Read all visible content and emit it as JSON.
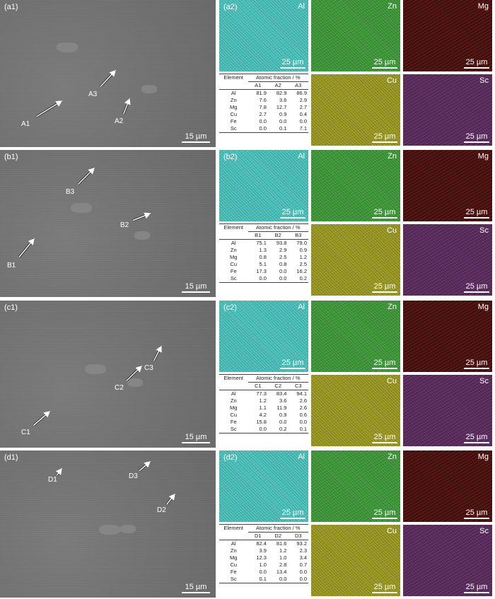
{
  "scale_bar_sem": "15 µm",
  "scale_bar_map": "25 µm",
  "table_header": {
    "element": "Element",
    "fraction": "Atomic fraction / %"
  },
  "map_colors": {
    "Al": "#4cc4bd",
    "Zn": "#3f9a3a",
    "Mg": "#4a0f0c",
    "Cu": "#9c9a22",
    "Sc": "#5b2b5e",
    "sem": "#6f6f6f"
  },
  "panels": [
    {
      "sem_label": "(a1)",
      "map_label": "(a2)",
      "points": [
        "A1",
        "A2",
        "A3"
      ],
      "maps": [
        "Al",
        "Zn",
        "Mg",
        "Cu",
        "Sc"
      ],
      "rows": [
        [
          "Al",
          "81.9",
          "82.9",
          "86.9"
        ],
        [
          "Zn",
          "7.6",
          "3.6",
          "2.9"
        ],
        [
          "Mg",
          "7.8",
          "12.7",
          "2.7"
        ],
        [
          "Cu",
          "2.7",
          "0.9",
          "0.4"
        ],
        [
          "Fe",
          "0.0",
          "0.0",
          "0.0"
        ],
        [
          "Sc",
          "0.0",
          "0.1",
          "7.1"
        ]
      ]
    },
    {
      "sem_label": "(b1)",
      "map_label": "(b2)",
      "points": [
        "B1",
        "B2",
        "B3"
      ],
      "maps": [
        "Al",
        "Zn",
        "Mg",
        "Cu",
        "Sc"
      ],
      "rows": [
        [
          "Al",
          "75.1",
          "93.8",
          "79.0"
        ],
        [
          "Zn",
          "1.3",
          "2.9",
          "0.9"
        ],
        [
          "Mg",
          "0.8",
          "2.5",
          "1.2"
        ],
        [
          "Cu",
          "5.1",
          "0.8",
          "2.5"
        ],
        [
          "Fe",
          "17.3",
          "0.0",
          "16.2"
        ],
        [
          "Sc",
          "0.0",
          "0.0",
          "0.2"
        ]
      ]
    },
    {
      "sem_label": "(c1)",
      "map_label": "(c2)",
      "points": [
        "C1",
        "C2",
        "C3"
      ],
      "maps": [
        "Al",
        "Zn",
        "Mg",
        "Cu",
        "Sc"
      ],
      "rows": [
        [
          "Al",
          "77.3",
          "83.4",
          "94.1"
        ],
        [
          "Zn",
          "1.2",
          "3.6",
          "2.6"
        ],
        [
          "Mg",
          "1.1",
          "11.9",
          "2.6"
        ],
        [
          "Cu",
          "4.2",
          "0.9",
          "0.6"
        ],
        [
          "Fe",
          "15.8",
          "0.0",
          "0.0"
        ],
        [
          "Sc",
          "0.0",
          "0.2",
          "0.1"
        ]
      ]
    },
    {
      "sem_label": "(d1)",
      "map_label": "(d2)",
      "points": [
        "D1",
        "D2",
        "D3"
      ],
      "maps": [
        "Al",
        "Zn",
        "Mg",
        "Cu",
        "Sc"
      ],
      "rows": [
        [
          "Al",
          "82.4",
          "81.6",
          "93.2"
        ],
        [
          "Zn",
          "3.9",
          "1.2",
          "2.3"
        ],
        [
          "Mg",
          "12.3",
          "1.0",
          "3.4"
        ],
        [
          "Cu",
          "1.0",
          "2.8",
          "0.7"
        ],
        [
          "Fe",
          "0.0",
          "13.4",
          "0.0"
        ],
        [
          "Sc",
          "0.1",
          "0.0",
          "0.0"
        ]
      ]
    }
  ]
}
